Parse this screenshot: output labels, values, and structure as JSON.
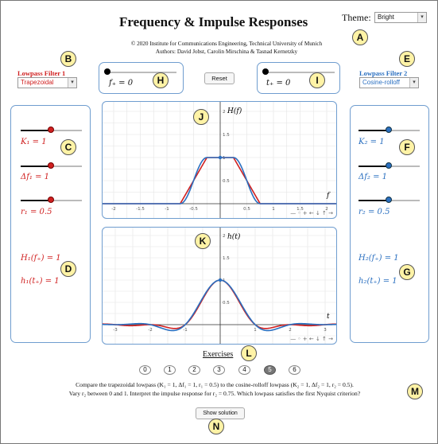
{
  "header": {
    "title": "Frequency & Impulse Responses",
    "theme_label": "Theme:",
    "theme_value": "Bright",
    "credit_line1": "© 2020 Institute for Communications Engineering, Technical University of Munich",
    "credit_line2": "Authors: David Jobst, Carolin Mirschina & Tasnad Kernetzky"
  },
  "filter1": {
    "title": "Lowpass Filter 1",
    "type": "Trapezoidal",
    "K_label": "K₁ = 1",
    "df_label": "Δf₁ = 1",
    "r_label": "r₁ = 0.5",
    "H_label": "H₁(f₊) = 1",
    "h_label": "h₁(t₊) = 1",
    "K": 1,
    "df": 1,
    "r": 0.5
  },
  "filter2": {
    "title": "Lowpass Filter 2",
    "type": "Cosine-rolloff",
    "K_label": "K₂ = 1",
    "df_label": "Δf₂ = 1",
    "r_label": "r₂ = 0.5",
    "H_label": "H₂(f₊) = 1",
    "h_label": "h₂(t₊) = 1",
    "K": 1,
    "df": 1,
    "r": 0.5
  },
  "controls": {
    "f_label": "f₊ = 0",
    "t_label": "t₊ = 0",
    "reset_label": "Reset"
  },
  "graph_freq": {
    "ylabel": "H(f)",
    "xlabel": "f",
    "xticks": [
      "-2",
      "-1.5",
      "-1",
      "-0.5",
      "0.5",
      "1",
      "1.5",
      "2"
    ],
    "yticks": [
      "2",
      "1.5",
      "1",
      "0.5"
    ],
    "toolbar": "— ◦ + ← ↓ ↑ →"
  },
  "graph_time": {
    "ylabel": "h(t)",
    "xlabel": "t",
    "xticks": [
      "-3",
      "-2",
      "-1",
      "1",
      "2",
      "3"
    ],
    "yticks": [
      "2",
      "1.5",
      "1",
      "0.5"
    ],
    "toolbar": "— ◦ + ← ↓ ↑ →"
  },
  "exercises": {
    "label": "Exercises",
    "buttons": [
      "0",
      "1",
      "2",
      "3",
      "4",
      "5",
      "6"
    ],
    "active": 5,
    "text_line1": "Compare the trapezoidal lowpass (K₁ = 1, Δf₁ = 1, r₁ = 0.5) to the cosine-rolloff lowpass (K₂ = 1, Δf₂ = 1, r₂ = 0.5).",
    "text_line2": "Vary r₂ between 0 and 1. Interpret the impulse response for r₂ = 0.75. Which lowpass satisfies the first Nyquist criterion?",
    "solution_label": "Show solution"
  },
  "badges": [
    "A",
    "B",
    "C",
    "D",
    "E",
    "F",
    "G",
    "H",
    "I",
    "J",
    "K",
    "L",
    "M",
    "N"
  ],
  "colors": {
    "filter1": "#d02020",
    "filter2": "#2a6fc0",
    "panel_border": "#6f9dcf",
    "badge": "#fff3a6"
  }
}
